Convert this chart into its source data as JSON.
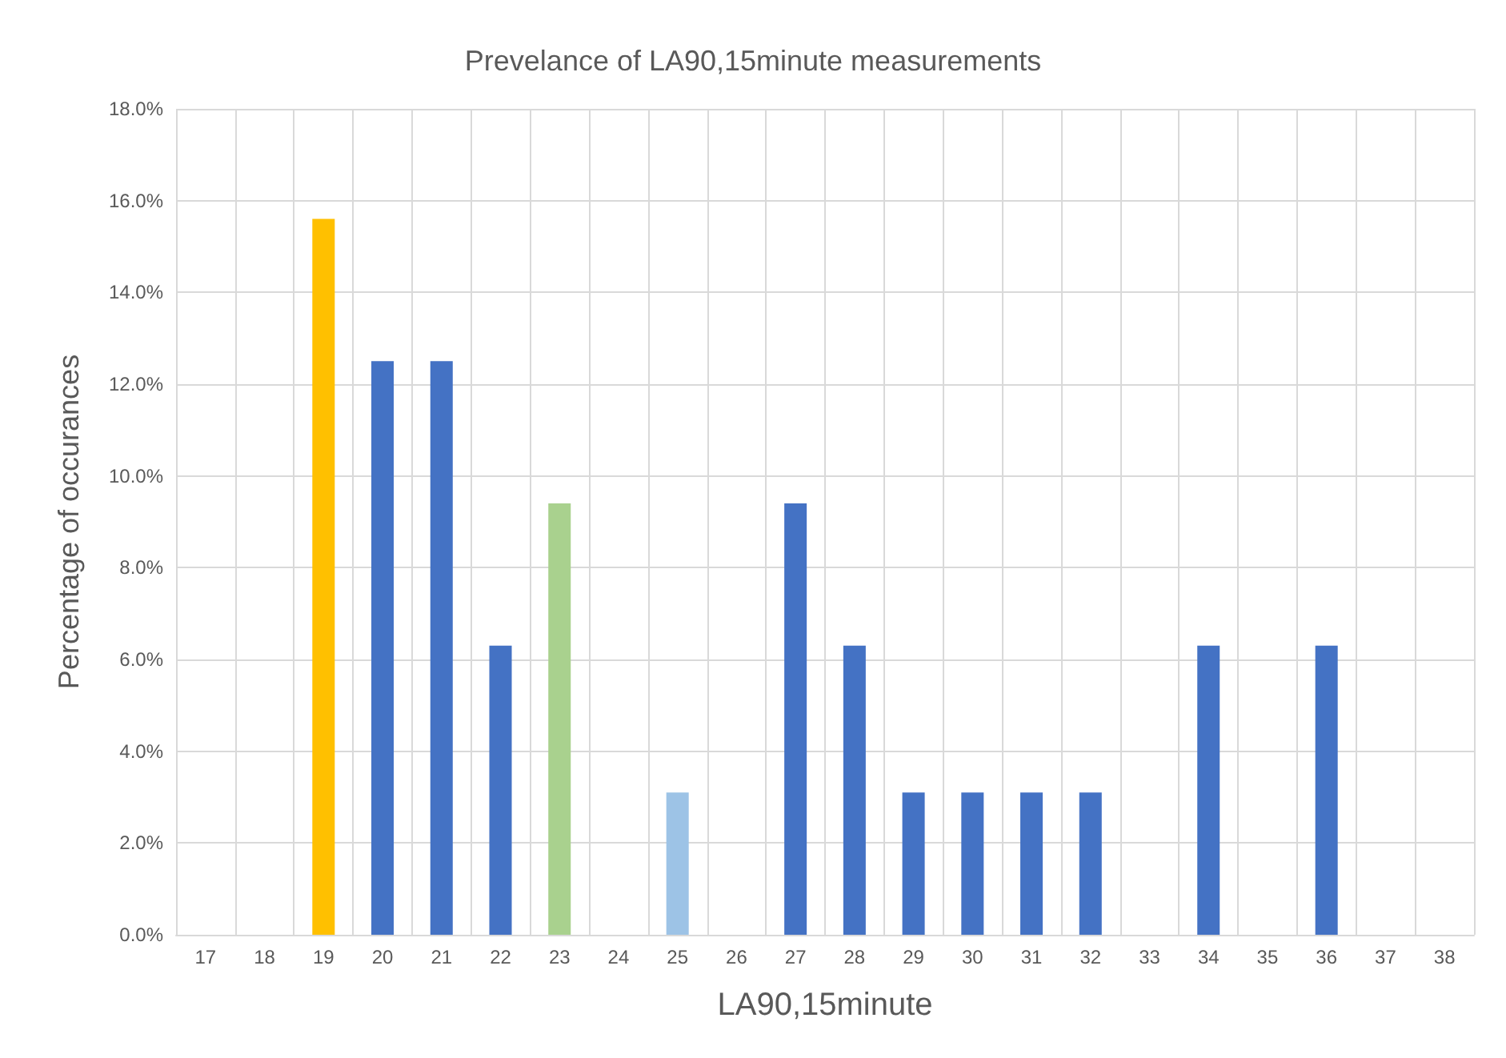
{
  "chart_data": {
    "type": "bar",
    "title": "Prevelance of LA90,15minute measurements",
    "xlabel": "LA90,15minute",
    "ylabel": "Percentage of occurances",
    "categories": [
      "17",
      "18",
      "19",
      "20",
      "21",
      "22",
      "23",
      "24",
      "25",
      "26",
      "27",
      "28",
      "29",
      "30",
      "31",
      "32",
      "33",
      "34",
      "35",
      "36",
      "37",
      "38"
    ],
    "values": [
      0,
      0,
      15.6,
      12.5,
      12.5,
      6.3,
      9.4,
      0,
      3.1,
      0,
      9.4,
      6.3,
      3.1,
      3.1,
      3.1,
      3.1,
      0,
      6.3,
      0,
      6.3,
      0,
      0
    ],
    "colors": [
      "#4472c4",
      "#4472c4",
      "#ffc000",
      "#4472c4",
      "#4472c4",
      "#4472c4",
      "#a9d18e",
      "#4472c4",
      "#9dc3e6",
      "#4472c4",
      "#4472c4",
      "#4472c4",
      "#4472c4",
      "#4472c4",
      "#4472c4",
      "#4472c4",
      "#4472c4",
      "#4472c4",
      "#4472c4",
      "#4472c4",
      "#4472c4",
      "#4472c4"
    ],
    "ylim": [
      0,
      18
    ],
    "yticks": [
      {
        "value": 0,
        "label": "0.0%"
      },
      {
        "value": 2,
        "label": "2.0%"
      },
      {
        "value": 4,
        "label": "4.0%"
      },
      {
        "value": 6,
        "label": "6.0%"
      },
      {
        "value": 8,
        "label": "8.0%"
      },
      {
        "value": 10,
        "label": "10.0%"
      },
      {
        "value": 12,
        "label": "12.0%"
      },
      {
        "value": 14,
        "label": "14.0%"
      },
      {
        "value": 16,
        "label": "16.0%"
      },
      {
        "value": 18,
        "label": "18.0%"
      }
    ],
    "grid": true
  }
}
